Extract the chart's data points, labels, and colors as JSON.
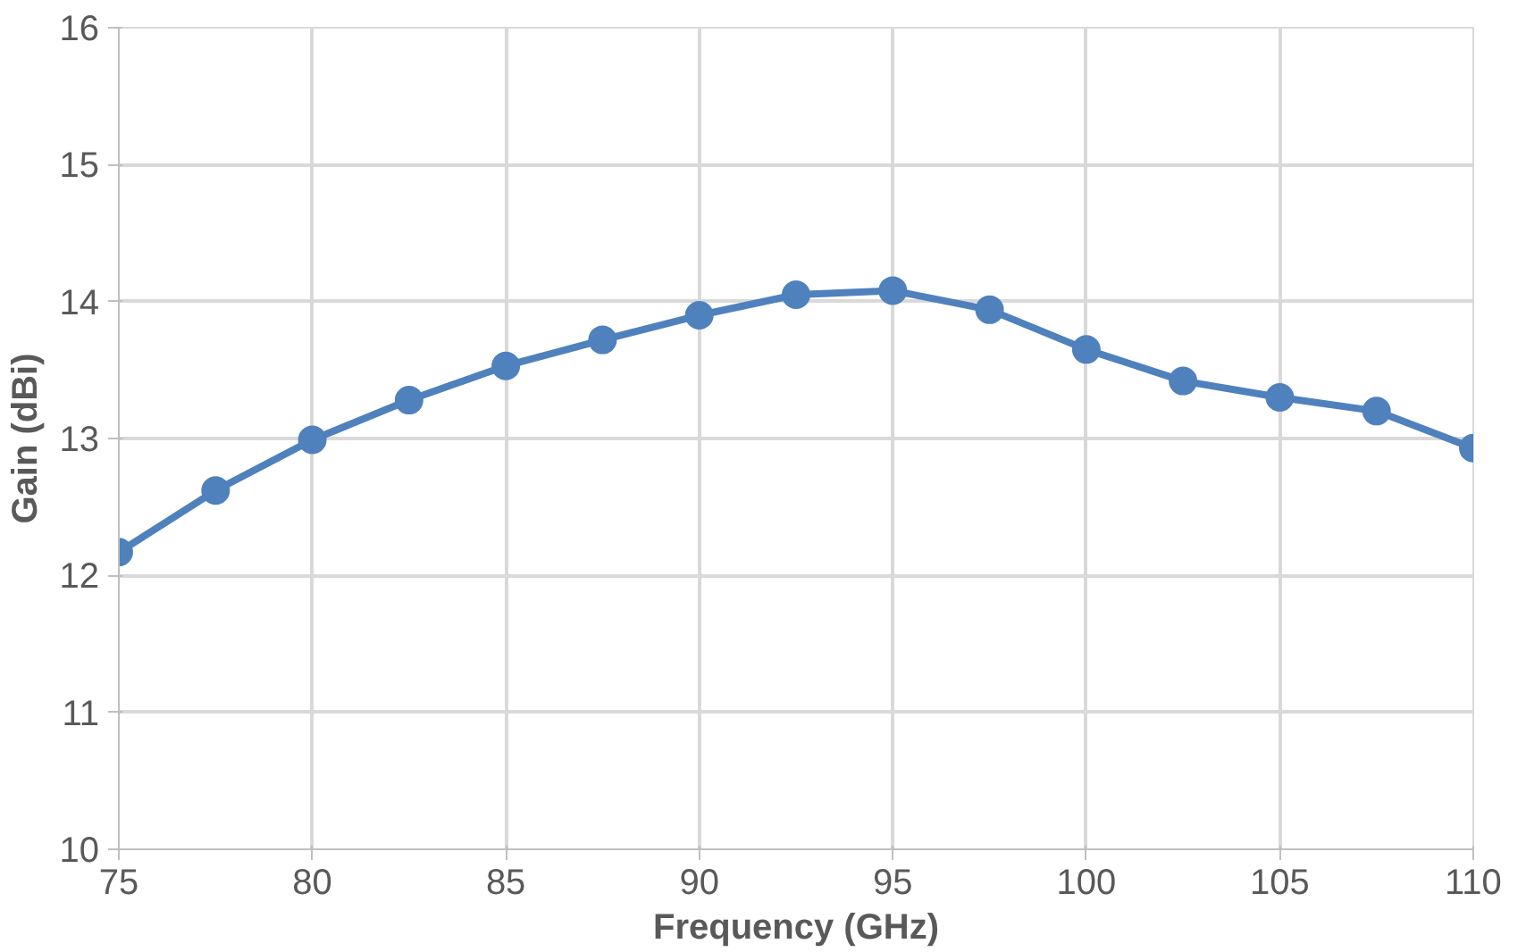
{
  "chart_data": {
    "type": "line",
    "xlabel": "Frequency (GHz)",
    "ylabel": "Gain (dBi)",
    "x": [
      75,
      77.5,
      80,
      82.5,
      85,
      87.5,
      90,
      92.5,
      95,
      97.5,
      100,
      102.5,
      105,
      107.5,
      110
    ],
    "series": [
      {
        "color": "#4f81bd",
        "values": [
          12.17,
          12.62,
          12.99,
          13.28,
          13.53,
          13.72,
          13.9,
          14.05,
          14.08,
          13.94,
          13.65,
          13.42,
          13.3,
          13.2,
          12.93
        ]
      }
    ],
    "xlim": [
      75,
      110
    ],
    "ylim": [
      10,
      16
    ],
    "xticks": [
      75,
      80,
      85,
      90,
      95,
      100,
      105,
      110
    ],
    "yticks": [
      10,
      11,
      12,
      13,
      14,
      15,
      16
    ],
    "grid": true,
    "marker": "circle",
    "line_style": "solid"
  }
}
